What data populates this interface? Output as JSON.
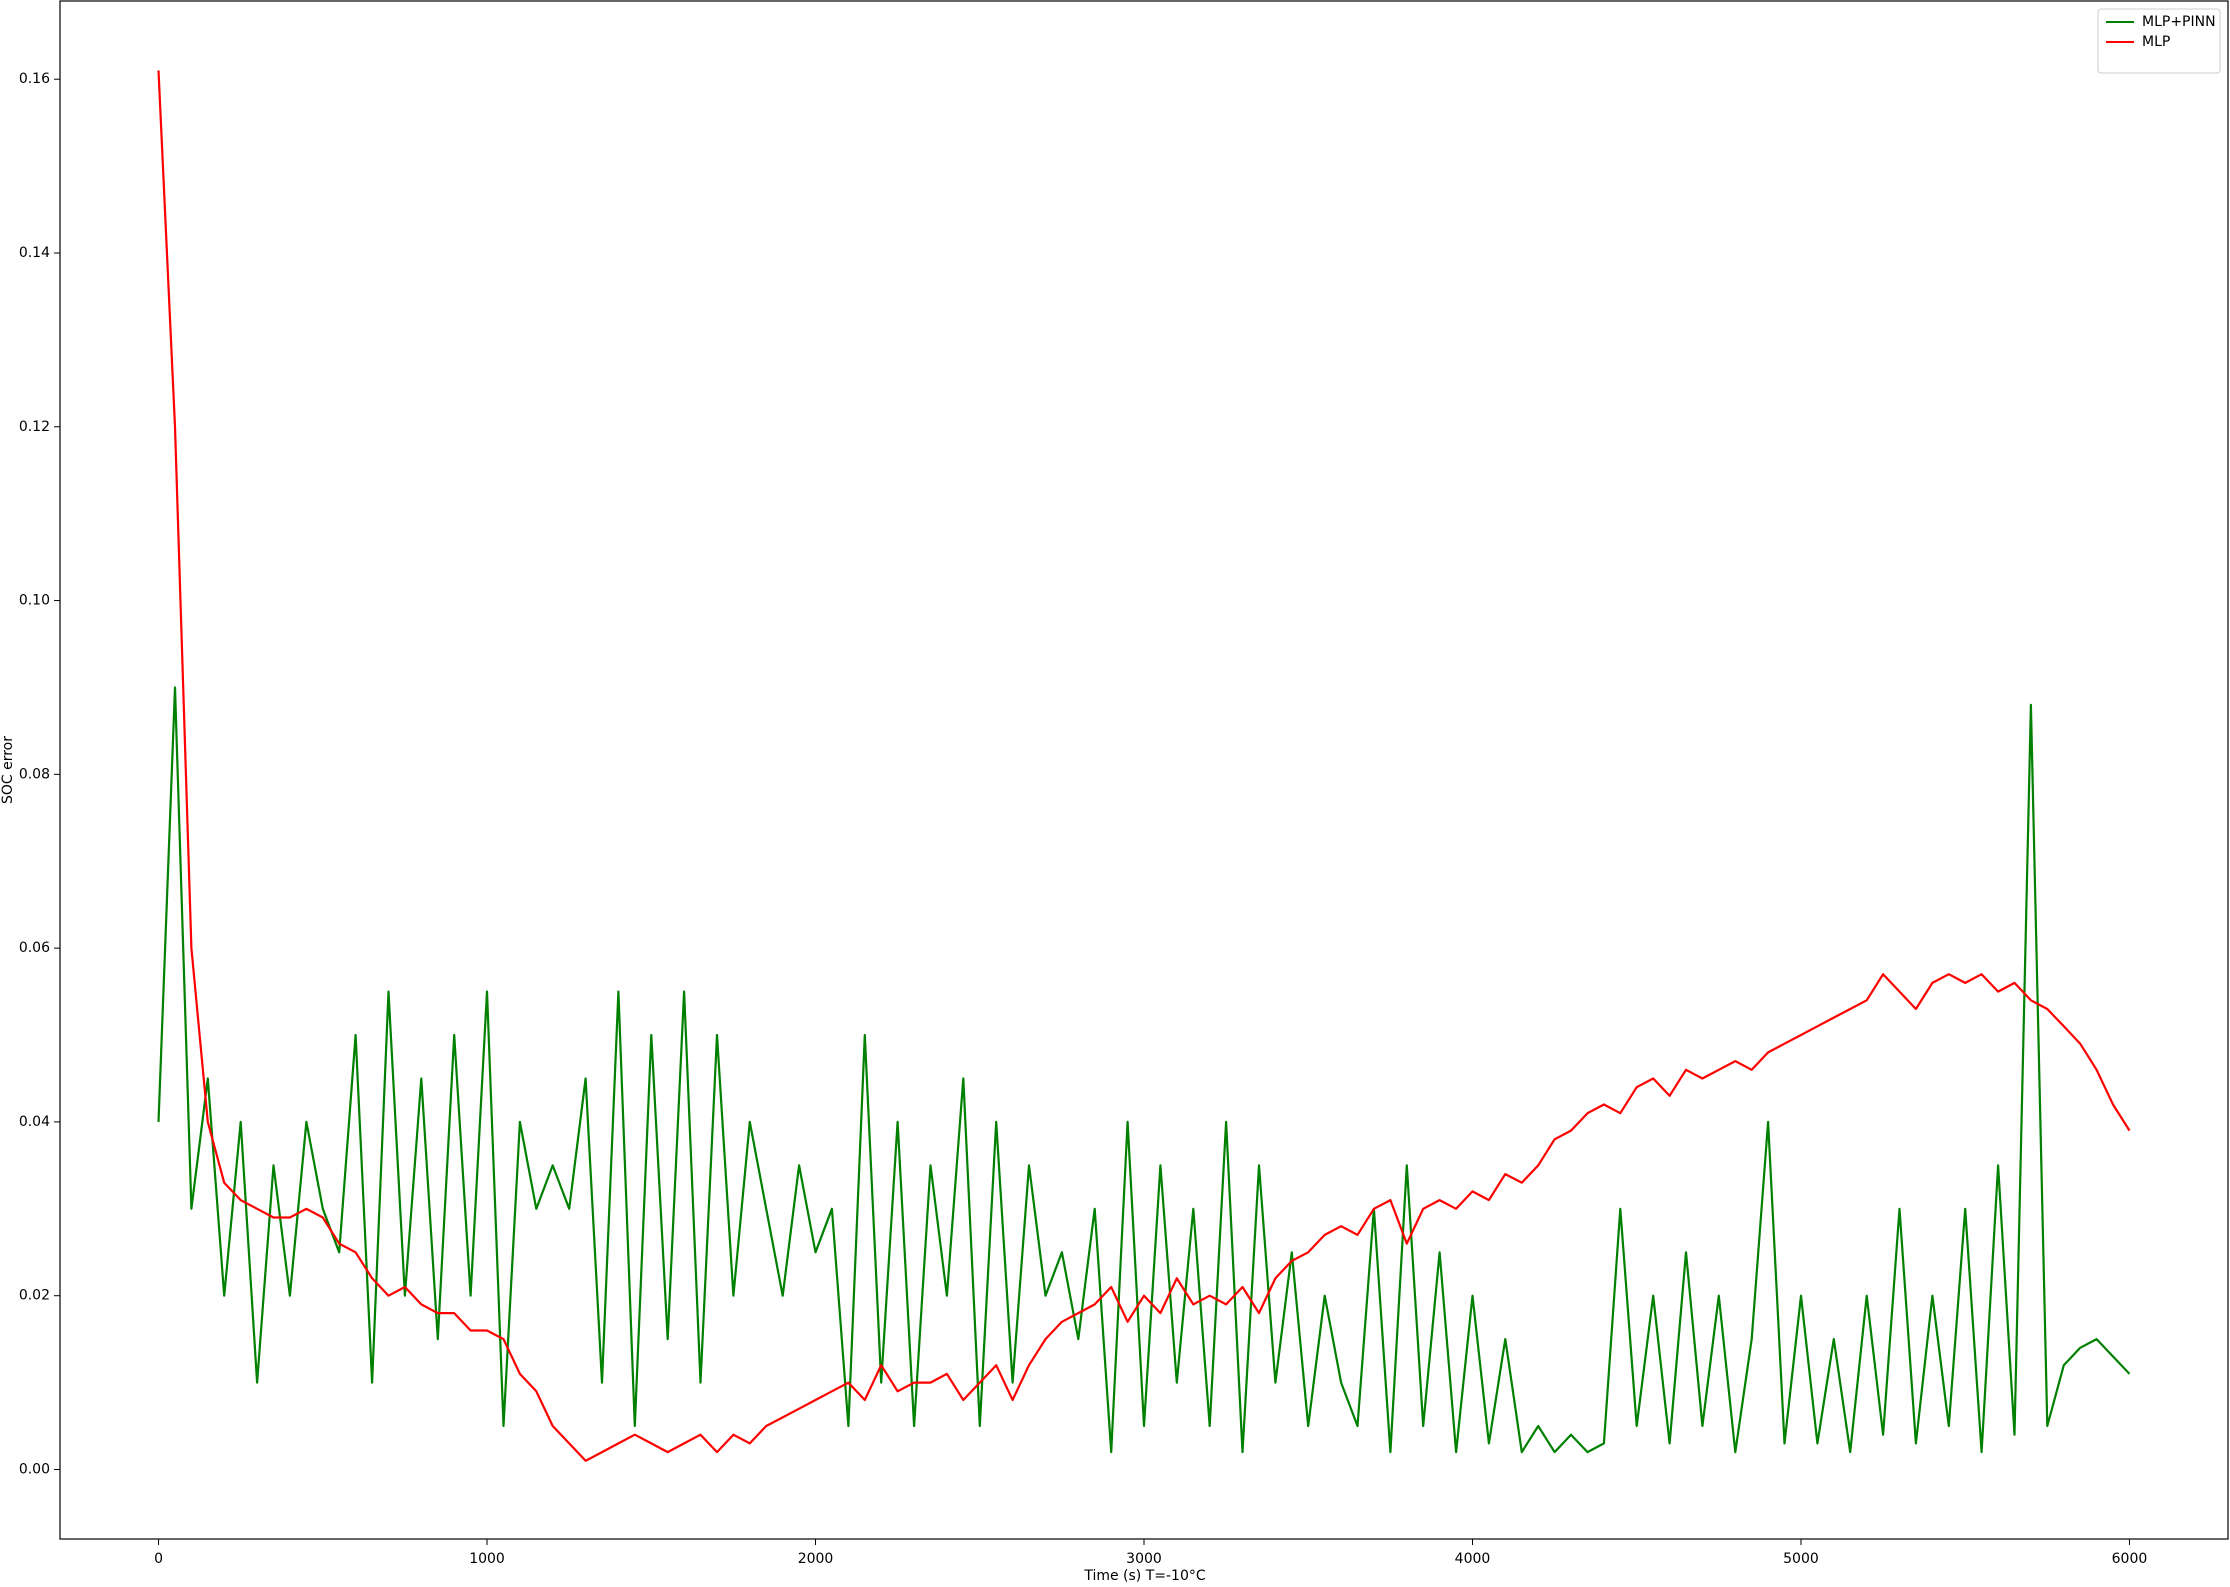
{
  "chart_data": {
    "type": "line",
    "xlabel": "Time (s) T=-10°C",
    "ylabel": "SOC error",
    "x": [
      0,
      50,
      100,
      150,
      200,
      250,
      300,
      350,
      400,
      450,
      500,
      550,
      600,
      650,
      700,
      750,
      800,
      850,
      900,
      950,
      1000,
      1050,
      1100,
      1150,
      1200,
      1250,
      1300,
      1350,
      1400,
      1450,
      1500,
      1550,
      1600,
      1650,
      1700,
      1750,
      1800,
      1850,
      1900,
      1950,
      2000,
      2050,
      2100,
      2150,
      2200,
      2250,
      2300,
      2350,
      2400,
      2450,
      2500,
      2550,
      2600,
      2650,
      2700,
      2750,
      2800,
      2850,
      2900,
      2950,
      3000,
      3050,
      3100,
      3150,
      3200,
      3250,
      3300,
      3350,
      3400,
      3450,
      3500,
      3550,
      3600,
      3650,
      3700,
      3750,
      3800,
      3850,
      3900,
      3950,
      4000,
      4050,
      4100,
      4150,
      4200,
      4250,
      4300,
      4350,
      4400,
      4450,
      4500,
      4550,
      4600,
      4650,
      4700,
      4750,
      4800,
      4850,
      4900,
      4950,
      5000,
      5050,
      5100,
      5150,
      5200,
      5250,
      5300,
      5350,
      5400,
      5450,
      5500,
      5550,
      5600,
      5650,
      5700,
      5750,
      5800,
      5850,
      5900,
      5950,
      6000
    ],
    "series": [
      {
        "name": "MLP+PINN",
        "color": "#008000",
        "values": [
          0.04,
          0.09,
          0.03,
          0.045,
          0.02,
          0.04,
          0.01,
          0.035,
          0.02,
          0.04,
          0.03,
          0.025,
          0.05,
          0.01,
          0.055,
          0.02,
          0.045,
          0.015,
          0.05,
          0.02,
          0.055,
          0.005,
          0.04,
          0.03,
          0.035,
          0.03,
          0.045,
          0.01,
          0.055,
          0.005,
          0.05,
          0.015,
          0.055,
          0.01,
          0.05,
          0.02,
          0.04,
          0.03,
          0.02,
          0.035,
          0.025,
          0.03,
          0.005,
          0.05,
          0.01,
          0.04,
          0.005,
          0.035,
          0.02,
          0.045,
          0.005,
          0.04,
          0.01,
          0.035,
          0.02,
          0.025,
          0.015,
          0.03,
          0.002,
          0.04,
          0.005,
          0.035,
          0.01,
          0.03,
          0.005,
          0.04,
          0.002,
          0.035,
          0.01,
          0.025,
          0.005,
          0.02,
          0.01,
          0.005,
          0.03,
          0.002,
          0.035,
          0.005,
          0.025,
          0.002,
          0.02,
          0.003,
          0.015,
          0.002,
          0.005,
          0.002,
          0.004,
          0.002,
          0.003,
          0.03,
          0.005,
          0.02,
          0.003,
          0.025,
          0.005,
          0.02,
          0.002,
          0.015,
          0.04,
          0.003,
          0.02,
          0.003,
          0.015,
          0.002,
          0.02,
          0.004,
          0.03,
          0.003,
          0.02,
          0.005,
          0.03,
          0.002,
          0.035,
          0.004,
          0.088,
          0.005,
          0.012,
          0.014,
          0.015,
          0.013,
          0.011
        ]
      },
      {
        "name": "MLP",
        "color": "#ff0000",
        "values": [
          0.161,
          0.12,
          0.06,
          0.04,
          0.033,
          0.031,
          0.03,
          0.029,
          0.029,
          0.03,
          0.029,
          0.026,
          0.025,
          0.022,
          0.02,
          0.021,
          0.019,
          0.018,
          0.018,
          0.016,
          0.016,
          0.015,
          0.011,
          0.009,
          0.005,
          0.003,
          0.001,
          0.002,
          0.003,
          0.004,
          0.003,
          0.002,
          0.003,
          0.004,
          0.002,
          0.004,
          0.003,
          0.005,
          0.006,
          0.007,
          0.008,
          0.009,
          0.01,
          0.008,
          0.012,
          0.009,
          0.01,
          0.01,
          0.011,
          0.008,
          0.01,
          0.012,
          0.008,
          0.012,
          0.015,
          0.017,
          0.018,
          0.019,
          0.021,
          0.017,
          0.02,
          0.018,
          0.022,
          0.019,
          0.02,
          0.019,
          0.021,
          0.018,
          0.022,
          0.024,
          0.025,
          0.027,
          0.028,
          0.027,
          0.03,
          0.031,
          0.026,
          0.03,
          0.031,
          0.03,
          0.032,
          0.031,
          0.034,
          0.033,
          0.035,
          0.038,
          0.039,
          0.041,
          0.042,
          0.041,
          0.044,
          0.045,
          0.043,
          0.046,
          0.045,
          0.046,
          0.047,
          0.046,
          0.048,
          0.049,
          0.05,
          0.051,
          0.052,
          0.053,
          0.054,
          0.057,
          0.055,
          0.053,
          0.056,
          0.057,
          0.056,
          0.057,
          0.055,
          0.056,
          0.054,
          0.053,
          0.051,
          0.049,
          0.046,
          0.042,
          0.039
        ]
      }
    ],
    "xlim": [
      -300,
      6300
    ],
    "ylim": [
      -0.008,
      0.169
    ],
    "xticks": [
      0,
      1000,
      2000,
      3000,
      4000,
      5000,
      6000
    ],
    "yticks": [
      {
        "value": 0,
        "label": "0.00"
      },
      0.02,
      0.04,
      0.06,
      0.08,
      {
        "value": 0.1,
        "label": "0.10"
      },
      0.12,
      0.14,
      0.16
    ],
    "legend": "upper right"
  }
}
